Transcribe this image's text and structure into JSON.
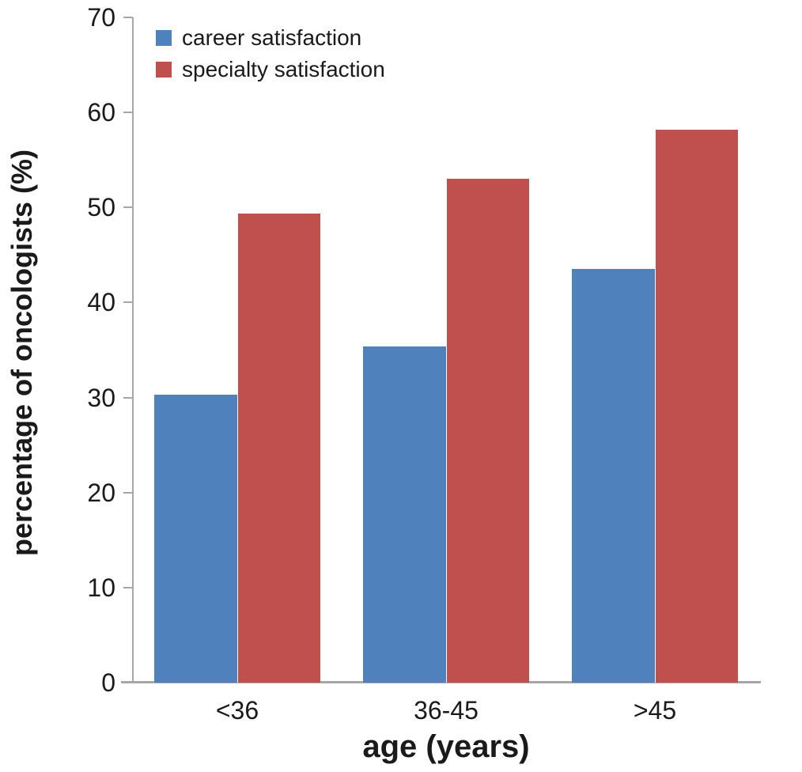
{
  "chart_data": {
    "type": "bar",
    "title": "",
    "categories": [
      "<36",
      "36-45",
      ">45"
    ],
    "series": [
      {
        "name": "career satisfaction",
        "color": "#4f81bd",
        "values": [
          30.3,
          35.4,
          43.5
        ]
      },
      {
        "name": "specialty satisfaction",
        "color": "#c0504d",
        "values": [
          49.4,
          53.0,
          58.2
        ]
      }
    ],
    "xlabel": "age (years)",
    "ylabel": "percentage of oncologists (%)",
    "ylim": [
      0,
      70
    ],
    "yticks": [
      0,
      10,
      20,
      30,
      40,
      50,
      60,
      70
    ],
    "legend_position": "top-left",
    "grid": false,
    "axis_color": "#a6a6a6",
    "text_color": "#1a1a1a",
    "background_color": "#ffffff"
  }
}
